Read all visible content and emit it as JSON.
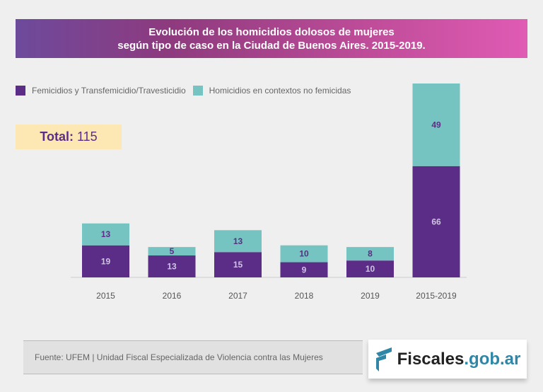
{
  "title_lines": [
    "Evolución de los homicidios dolosos de mujeres",
    "según tipo de caso en la Ciudad de Buenos Aires. 2015-2019."
  ],
  "total": {
    "label": "Total:",
    "value": "115"
  },
  "source": "Fuente: UFEM | Unidad Fiscal Especializada de Violencia contra las Mujeres",
  "logo": {
    "part1": "Fiscales",
    "part2": ".gob.ar"
  },
  "chart_data": {
    "type": "bar",
    "stacked": true,
    "categories": [
      "2015",
      "2016",
      "2017",
      "2018",
      "2019",
      "2015-2019"
    ],
    "series": [
      {
        "name": "Femicidios y Transfemicidio/Travesticidio",
        "color": "#5b2d86",
        "values": [
          19,
          13,
          15,
          9,
          10,
          66
        ]
      },
      {
        "name": "Homicidios en contextos no femicidas",
        "color": "#76c4c1",
        "values": [
          13,
          5,
          13,
          10,
          8,
          49
        ]
      }
    ],
    "ylim": [
      0,
      115
    ],
    "grid": false,
    "legend": "top-left"
  }
}
